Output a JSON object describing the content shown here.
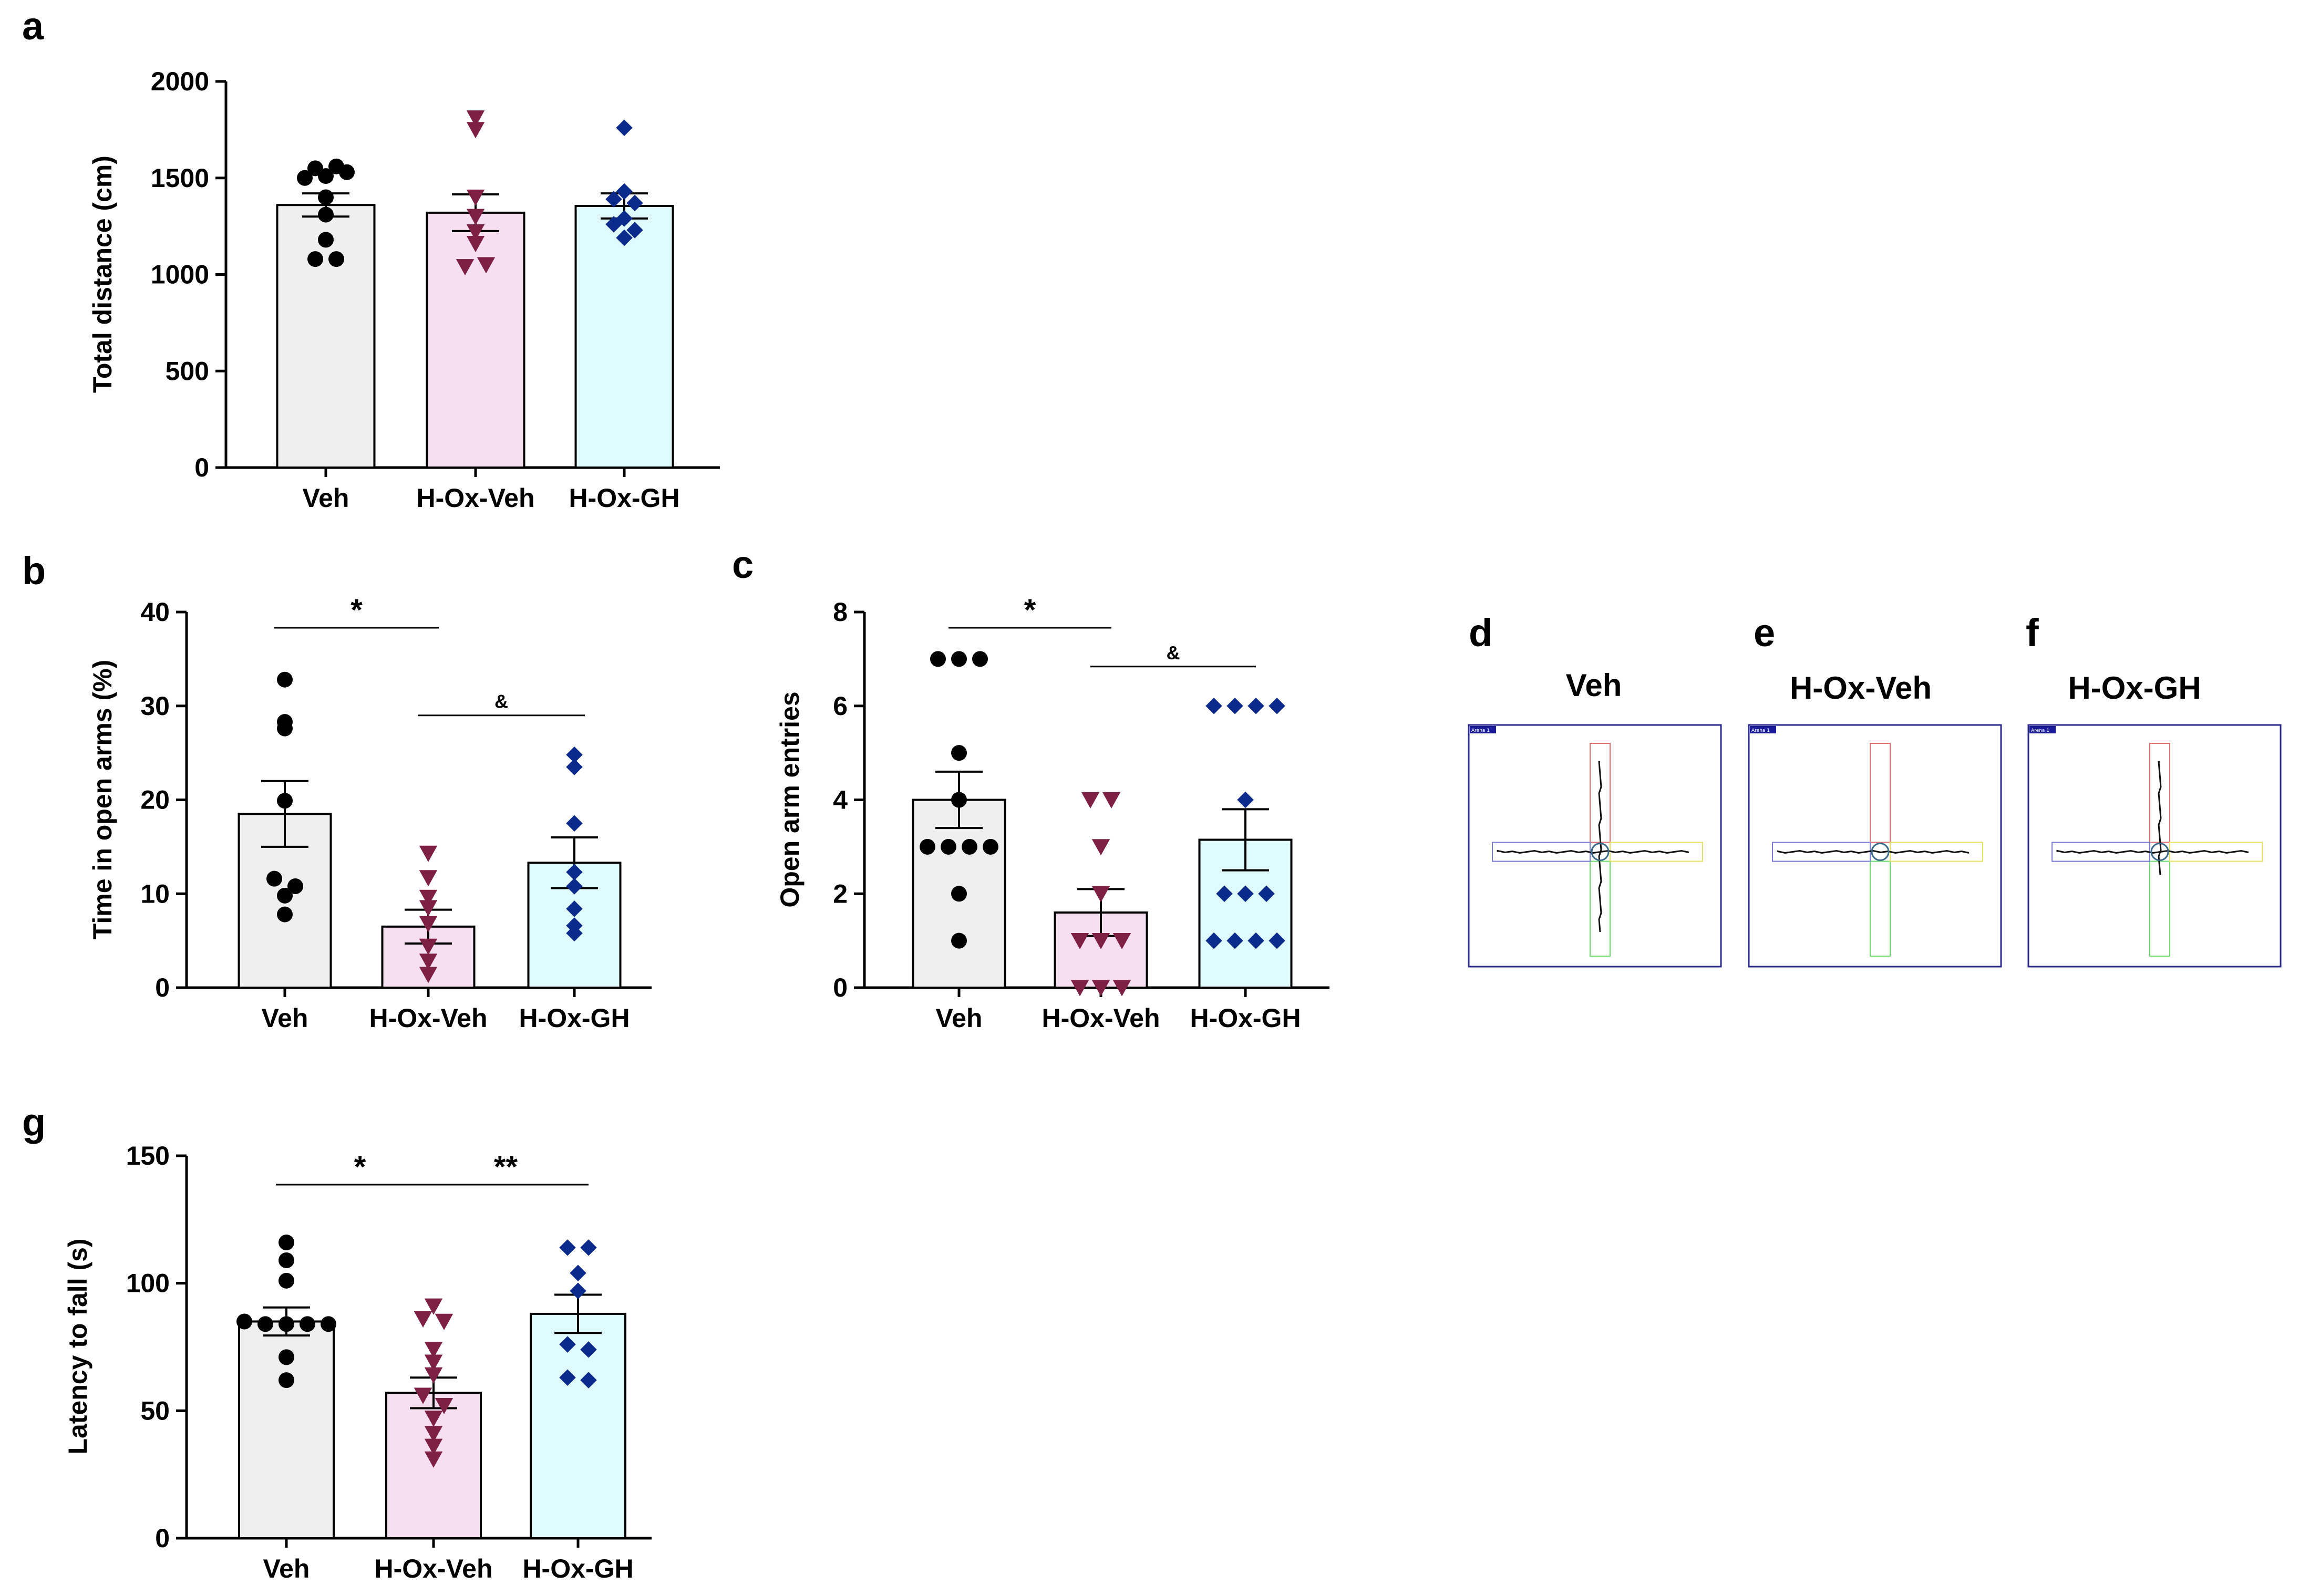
{
  "colors": {
    "veh_fill": "#efefef",
    "hox_veh_fill": "#f7dff2",
    "hox_gh_fill": "#e0fbfd",
    "veh_marker": "#000000",
    "hox_veh_marker": "#7e2043",
    "hox_gh_marker": "#0b2b8c",
    "maze_frame": "#2a2a8c",
    "maze_top": "#e07070",
    "maze_bottom": "#6adc6a",
    "maze_left": "#7a7ad8",
    "maze_right": "#e8e060",
    "arena_tag_bg": "#1a1a9a"
  },
  "chart_data": [
    {
      "id": "a",
      "type": "bar",
      "panel_label": "a",
      "ylabel": "Total distance (cm)",
      "xlabel": "",
      "ylim": [
        0,
        2000
      ],
      "yticks": [
        0,
        500,
        1000,
        1500,
        2000
      ],
      "categories": [
        "Veh",
        "H-Ox-Veh",
        "H-Ox-GH"
      ],
      "means": [
        1360,
        1320,
        1355
      ],
      "sem": [
        60,
        95,
        65
      ],
      "points": [
        [
          1550,
          1500,
          1510,
          1530,
          1560,
          1400,
          1310,
          1180,
          1080,
          1080
        ],
        [
          1810,
          1750,
          1400,
          1300,
          1220,
          1160,
          1040,
          1050
        ],
        [
          1760,
          1430,
          1390,
          1370,
          1290,
          1260,
          1230,
          1190
        ]
      ],
      "markers": [
        "circle",
        "triangle-down",
        "diamond"
      ],
      "significance": []
    },
    {
      "id": "b",
      "type": "bar",
      "panel_label": "b",
      "ylabel": "Time in open arms (%)",
      "xlabel": "",
      "ylim": [
        0,
        40
      ],
      "yticks": [
        0,
        10,
        20,
        30,
        40
      ],
      "categories": [
        "Veh",
        "H-Ox-Veh",
        "H-Ox-GH"
      ],
      "means": [
        18.5,
        6.5,
        13.3
      ],
      "sem": [
        3.5,
        1.8,
        2.7
      ],
      "points": [
        [
          32.8,
          28.3,
          27.6,
          19.9,
          11.6,
          10.8,
          9.8,
          7.8
        ],
        [
          14.3,
          11.7,
          9.6,
          8.5,
          6.8,
          4.4,
          2.8,
          1.4
        ],
        [
          24.8,
          23.5,
          17.5,
          12.3,
          10.8,
          8.4,
          6.6,
          5.8
        ]
      ],
      "markers": [
        "circle",
        "triangle-down",
        "diamond"
      ],
      "significance": [
        {
          "from": 0,
          "to": 1,
          "label": "*"
        },
        {
          "from": 1,
          "to": 2,
          "label": "&"
        }
      ]
    },
    {
      "id": "c",
      "type": "bar",
      "panel_label": "c",
      "ylabel": "Open arm entries",
      "xlabel": "",
      "ylim": [
        0,
        8
      ],
      "yticks": [
        0,
        2,
        4,
        6,
        8
      ],
      "categories": [
        "Veh",
        "H-Ox-Veh",
        "H-Ox-GH"
      ],
      "means": [
        4.0,
        1.6,
        3.15
      ],
      "sem": [
        0.6,
        0.5,
        0.65
      ],
      "points": [
        [
          7,
          7,
          7,
          5,
          4,
          3,
          3,
          3,
          3,
          2,
          1
        ],
        [
          4,
          4,
          3,
          2,
          1,
          1,
          1,
          0,
          0,
          0
        ],
        [
          6,
          6,
          6,
          6,
          4,
          2,
          2,
          2,
          1,
          1,
          1,
          1
        ]
      ],
      "markers": [
        "circle",
        "triangle-down",
        "diamond"
      ],
      "significance": [
        {
          "from": 0,
          "to": 1,
          "label": "*"
        },
        {
          "from": 1,
          "to": 2,
          "label": "&"
        }
      ]
    },
    {
      "id": "g",
      "type": "bar",
      "panel_label": "g",
      "ylabel": "Latency to fall (s)",
      "xlabel": "",
      "ylim": [
        0,
        150
      ],
      "yticks": [
        0,
        50,
        100,
        150
      ],
      "categories": [
        "Veh",
        "H-Ox-Veh",
        "H-Ox-GH"
      ],
      "means": [
        85,
        57,
        88
      ],
      "sem": [
        5.5,
        6,
        7.5
      ],
      "points": [
        [
          116,
          109,
          101,
          85,
          84,
          84,
          84,
          84,
          71,
          62
        ],
        [
          91,
          86,
          85,
          74,
          69,
          64,
          56,
          52,
          47,
          41,
          36,
          31
        ],
        [
          114,
          114,
          104,
          97,
          76,
          74,
          63,
          62
        ]
      ],
      "markers": [
        "circle",
        "triangle-down",
        "diamond"
      ],
      "significance": [
        {
          "from": 0,
          "to": 1,
          "label": "*"
        },
        {
          "from": 1,
          "to": 2,
          "label": "**"
        }
      ]
    }
  ],
  "maze_panels": [
    {
      "label": "d",
      "title": "Veh",
      "tag": "Arena 1"
    },
    {
      "label": "e",
      "title": "H-Ox-Veh",
      "tag": "Arena 1"
    },
    {
      "label": "f",
      "title": "H-Ox-GH",
      "tag": "Arena 1"
    }
  ]
}
